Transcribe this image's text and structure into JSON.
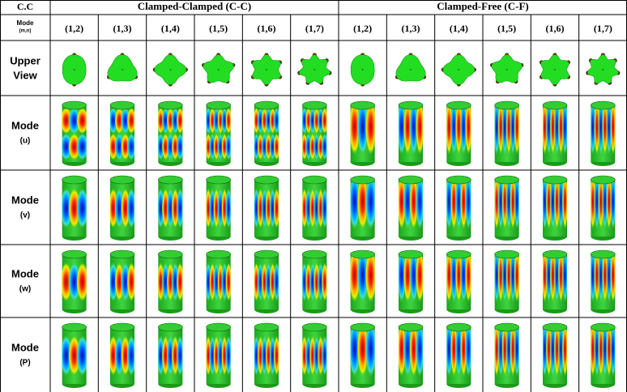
{
  "header": {
    "corner": "C.C",
    "groups": [
      "Clamped-Clamped (C-C)",
      "Clamped-Free (C-F)"
    ]
  },
  "subheader": {
    "label": "Mode",
    "sublabel": "(m,n)",
    "modes": [
      "(1,2)",
      "(1,3)",
      "(1,4)",
      "(1,5)",
      "(1,6)",
      "(1,7)",
      "(1,2)",
      "(1,3)",
      "(1,4)",
      "(1,5)",
      "(1,6)",
      "(1,7)"
    ]
  },
  "rows": [
    {
      "label": "Upper",
      "sublabel": "View"
    },
    {
      "label": "Mode",
      "sublabel": "(u)"
    },
    {
      "label": "Mode",
      "sublabel": "(v)"
    },
    {
      "label": "Mode",
      "sublabel": "(w)"
    },
    {
      "label": "Mode",
      "sublabel": "(P)"
    }
  ]
}
